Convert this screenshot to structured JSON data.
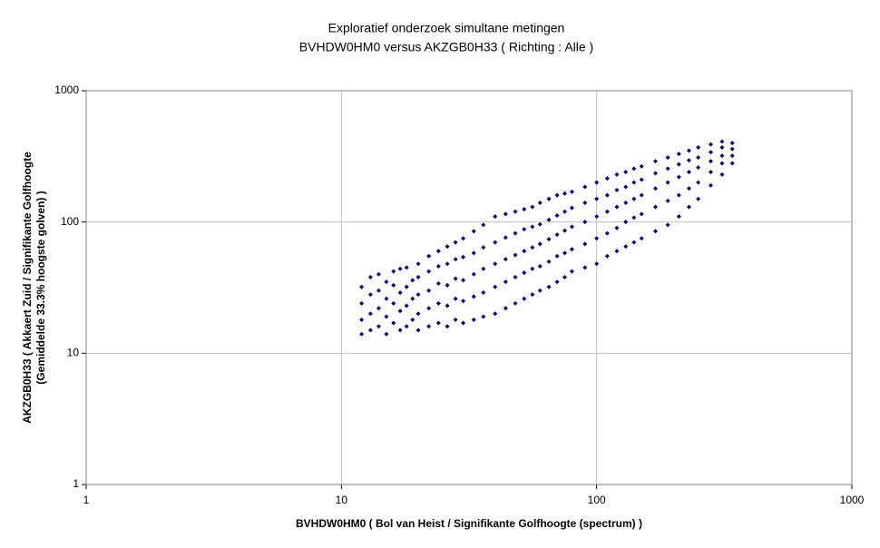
{
  "chart_data": {
    "type": "scatter",
    "title": "Exploratief onderzoek simultane metingen",
    "subtitle": "BVHDW0HM0 versus AKZGB0H33 ( Richting : Alle )",
    "x_label": "BVHDW0HM0 ( Bol van Heist / Signifikante Golfhoogte (spectrum) )",
    "y_label": [
      "AKZGB0H33 ( Akkaert Zuid / Signifikante Golfhoogte",
      "(Gemiddelde 33.3%  hoogste golven) )"
    ],
    "log_x": true,
    "log_y": true,
    "grid": true,
    "color": "#000080",
    "xlim": [
      1,
      1000
    ],
    "ylim": [
      1,
      1000
    ],
    "xticks": [
      1,
      10,
      100,
      1000
    ],
    "yticks": [
      1,
      10,
      100,
      1000
    ],
    "x": [
      12,
      12,
      12,
      12,
      13,
      13,
      13,
      13,
      14,
      14,
      14,
      14,
      15,
      15,
      15,
      15,
      16,
      16,
      16,
      16,
      17,
      17,
      17,
      17,
      18,
      18,
      18,
      18,
      19,
      19,
      19,
      20,
      20,
      20,
      20,
      20,
      22,
      22,
      22,
      22,
      22,
      24,
      24,
      24,
      24,
      24,
      26,
      26,
      26,
      26,
      26,
      28,
      28,
      28,
      28,
      28,
      30,
      30,
      30,
      30,
      30,
      33,
      33,
      33,
      33,
      33,
      36,
      36,
      36,
      36,
      36,
      40,
      40,
      40,
      40,
      40,
      44,
      44,
      44,
      44,
      44,
      48,
      48,
      48,
      48,
      48,
      52,
      52,
      52,
      52,
      52,
      56,
      56,
      56,
      56,
      56,
      60,
      60,
      60,
      60,
      60,
      65,
      65,
      65,
      65,
      65,
      70,
      70,
      70,
      70,
      70,
      75,
      75,
      75,
      75,
      75,
      80,
      80,
      80,
      80,
      80,
      90,
      90,
      90,
      90,
      90,
      100,
      100,
      100,
      100,
      100,
      110,
      110,
      110,
      110,
      110,
      120,
      120,
      120,
      120,
      120,
      130,
      130,
      130,
      130,
      130,
      140,
      140,
      140,
      140,
      140,
      150,
      150,
      150,
      150,
      150,
      170,
      170,
      170,
      170,
      170,
      190,
      190,
      190,
      190,
      190,
      210,
      210,
      210,
      210,
      210,
      230,
      230,
      230,
      230,
      230,
      250,
      250,
      250,
      250,
      250,
      280,
      280,
      280,
      280,
      280,
      310,
      310,
      310,
      310,
      310,
      340,
      340,
      340,
      340
    ],
    "values": [
      14,
      18,
      24,
      32,
      15,
      20,
      28,
      38,
      16,
      22,
      30,
      40,
      14,
      19,
      26,
      35,
      17,
      24,
      33,
      42,
      15,
      21,
      29,
      44,
      16,
      23,
      32,
      45,
      18,
      26,
      36,
      15,
      20,
      28,
      38,
      48,
      16,
      22,
      30,
      42,
      55,
      17,
      24,
      34,
      46,
      60,
      16,
      23,
      33,
      48,
      65,
      18,
      26,
      37,
      52,
      70,
      17,
      25,
      36,
      54,
      75,
      18,
      27,
      40,
      58,
      85,
      19,
      29,
      44,
      64,
      95,
      20,
      32,
      48,
      70,
      110,
      22,
      35,
      52,
      76,
      115,
      24,
      38,
      56,
      82,
      120,
      26,
      41,
      60,
      88,
      125,
      28,
      44,
      64,
      92,
      130,
      30,
      46,
      68,
      96,
      140,
      32,
      50,
      74,
      104,
      150,
      35,
      55,
      80,
      112,
      160,
      38,
      58,
      86,
      120,
      165,
      42,
      62,
      92,
      128,
      170,
      45,
      68,
      100,
      140,
      185,
      48,
      75,
      110,
      150,
      200,
      55,
      82,
      120,
      160,
      215,
      60,
      90,
      130,
      175,
      230,
      65,
      100,
      140,
      185,
      240,
      70,
      108,
      150,
      200,
      255,
      75,
      115,
      160,
      210,
      265,
      85,
      130,
      180,
      235,
      290,
      95,
      145,
      200,
      255,
      310,
      110,
      160,
      220,
      275,
      330,
      130,
      180,
      240,
      295,
      350,
      150,
      200,
      260,
      310,
      370,
      190,
      240,
      290,
      340,
      390,
      230,
      280,
      320,
      370,
      410,
      280,
      320,
      360,
      400
    ]
  }
}
